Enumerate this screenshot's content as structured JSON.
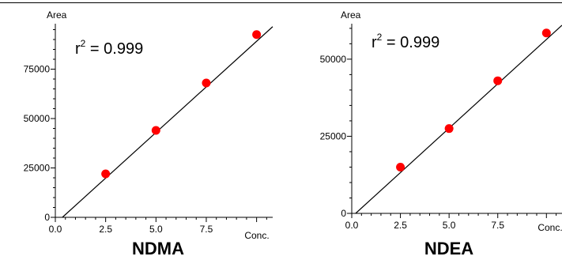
{
  "chart_data": [
    {
      "type": "scatter",
      "title": "NDMA",
      "xlabel": "Conc.",
      "ylabel": "Area",
      "annotation": {
        "r2_prefix": "r",
        "r2_sup": "2",
        "r2_value": " = 0.999"
      },
      "x_ticks": [
        "0.0",
        "2.5",
        "5.0",
        "7.5"
      ],
      "y_ticks": [
        "0",
        "25000",
        "50000",
        "75000"
      ],
      "xlim": [
        0,
        10.8
      ],
      "ylim": [
        0,
        98000
      ],
      "points": [
        {
          "x": 2.5,
          "y": 22000
        },
        {
          "x": 5.0,
          "y": 44000
        },
        {
          "x": 7.5,
          "y": 68000
        },
        {
          "x": 10.0,
          "y": 92500
        }
      ],
      "fit": {
        "x": [
          0.35,
          10.8
        ],
        "y": [
          0,
          96500
        ]
      },
      "point_color": "#ff0000",
      "grid": false
    },
    {
      "type": "scatter",
      "title": "NDEA",
      "xlabel": "Conc.",
      "ylabel": "Area",
      "annotation": {
        "r2_prefix": "r",
        "r2_sup": "2",
        "r2_value": " = 0.999"
      },
      "x_ticks": [
        "0.0",
        "2.5",
        "5.0",
        "7.5"
      ],
      "y_ticks": [
        "0",
        "25000",
        "50000"
      ],
      "xlim": [
        0,
        10.8
      ],
      "ylim": [
        0,
        61500
      ],
      "points": [
        {
          "x": 2.5,
          "y": 15000
        },
        {
          "x": 5.0,
          "y": 27500
        },
        {
          "x": 7.5,
          "y": 43000
        },
        {
          "x": 10.0,
          "y": 58500
        }
      ],
      "fit": {
        "x": [
          0.2,
          10.8
        ],
        "y": [
          0,
          61000
        ]
      },
      "point_color": "#ff0000",
      "grid": false
    }
  ]
}
